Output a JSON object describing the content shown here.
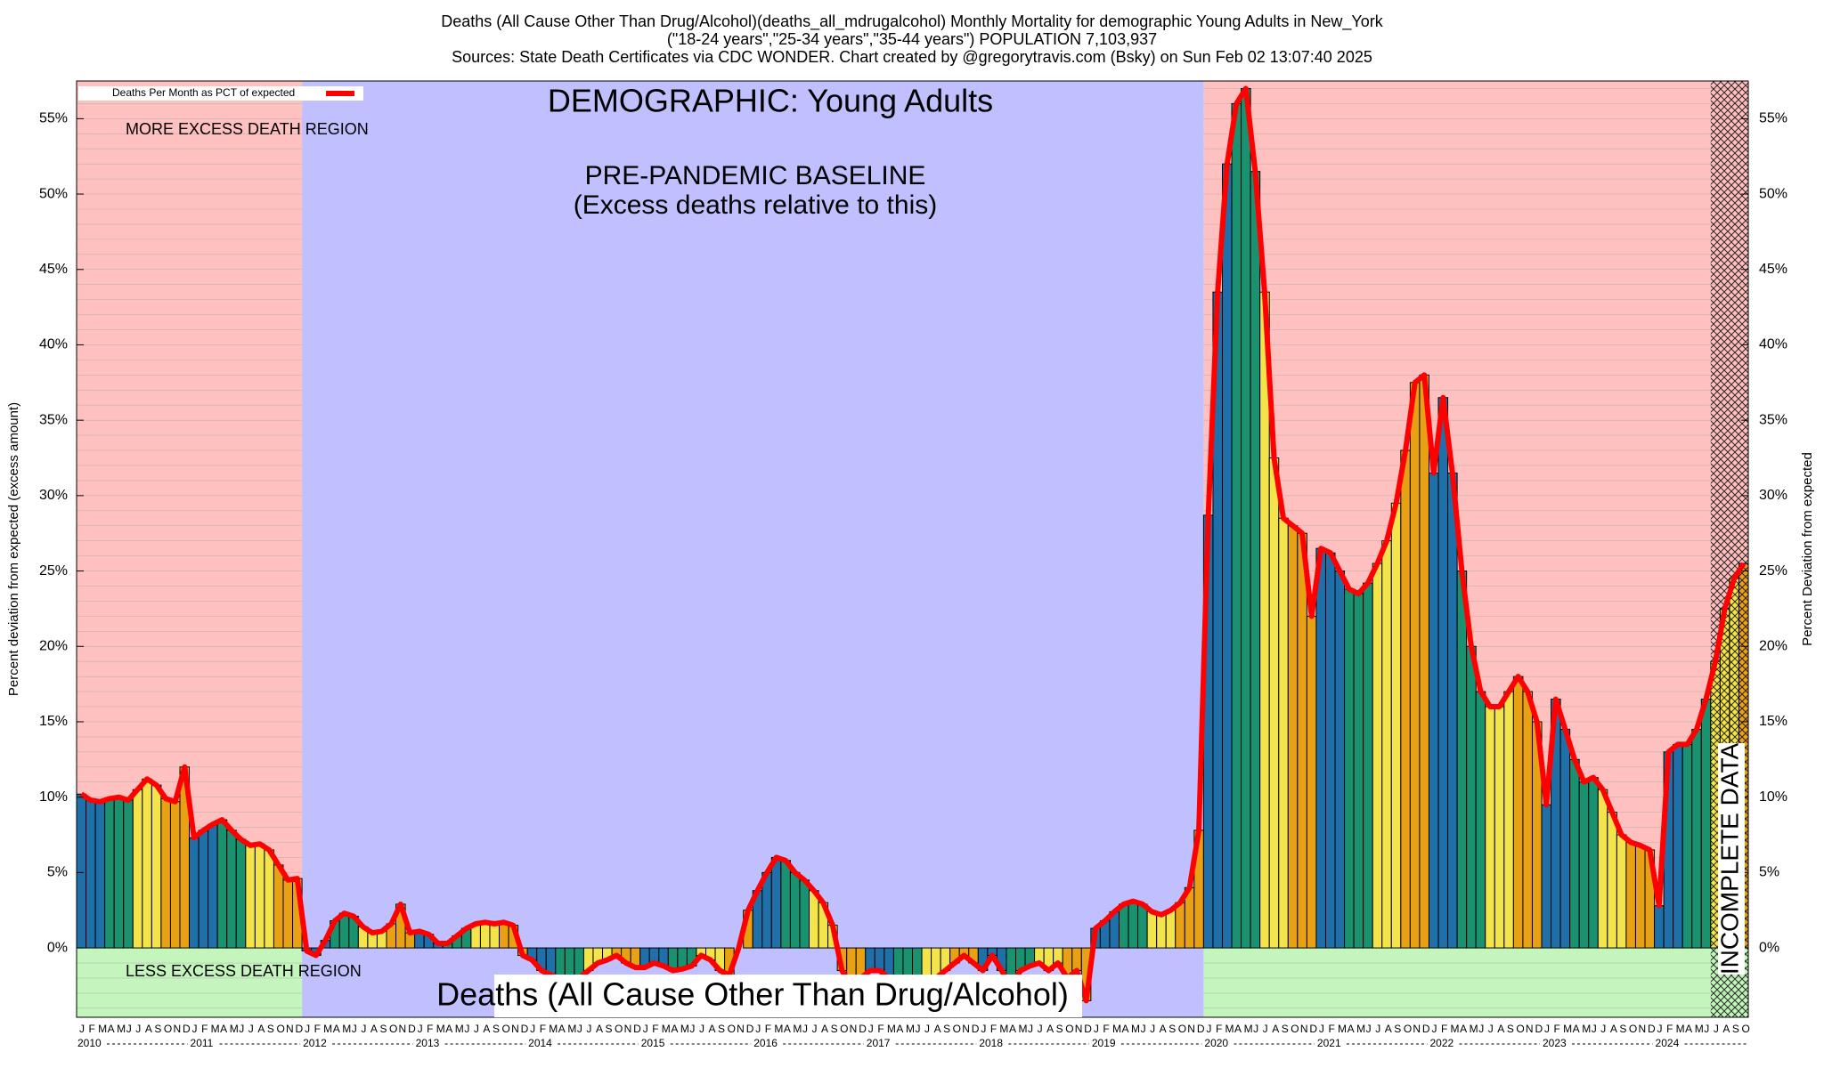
{
  "chart_data": {
    "type": "bar",
    "title": [
      "Deaths (All Cause Other Than Drug/Alcohol)(deaths_all_mdrugalcohol) Monthly Mortality for demographic Young Adults in New_York",
      "(\"18-24 years\",\"25-34 years\",\"35-44 years\") POPULATION 7,103,937",
      "Sources: State Death Certificates via CDC WONDER.                Chart created by @gregorytravis.com (Bsky) on Sun Feb 02 13:07:40 2025"
    ],
    "annotations": {
      "demographic": "DEMOGRAPHIC: Young Adults",
      "baseline": "PRE-PANDEMIC BASELINE",
      "baseline_note": "(Excess deaths relative to this)",
      "more": "MORE EXCESS DEATH REGION",
      "less": "LESS EXCESS DEATH REGION",
      "subject": "Deaths (All Cause Other Than Drug/Alcohol)",
      "incomplete": "INCOMPLETE DATA"
    },
    "y_label": "Percent deviation from expected (excess amount)",
    "y2_label": "Percent Deviation from expected",
    "month_letters": [
      "J",
      "F",
      "M",
      "A",
      "M",
      "J",
      "J",
      "A",
      "S",
      "O",
      "N",
      "D"
    ],
    "years": [
      2010,
      2011,
      2012,
      2013,
      2014,
      2015,
      2016,
      2017,
      2018,
      2019,
      2020,
      2021,
      2022,
      2023,
      2024
    ],
    "baseline_years": [
      2012,
      2019
    ],
    "incomplete_months": 4,
    "quarter_colors": [
      "#1f6fa8",
      "#1a9270",
      "#f2e44a",
      "#e8a015"
    ],
    "region_colors": {
      "more": "#ffc0c0",
      "less": "#c4f5bc",
      "baseline": "#c0c0ff"
    },
    "minor_grid_step": 1,
    "series": [
      {
        "name": "Deaths Per Month as PCT of expected",
        "color": "#ff0000",
        "values": [
          10.2,
          9.8,
          9.7,
          9.9,
          10.0,
          9.8,
          10.5,
          11.2,
          10.8,
          9.9,
          9.7,
          12.0,
          7.3,
          7.8,
          8.2,
          8.5,
          7.8,
          7.2,
          6.8,
          6.9,
          6.5,
          5.5,
          4.5,
          4.6,
          -0.2,
          -0.5,
          0.5,
          1.8,
          2.3,
          2.1,
          1.4,
          1.0,
          1.1,
          1.6,
          2.9,
          1.0,
          1.1,
          0.9,
          0.3,
          0.3,
          0.8,
          1.3,
          1.6,
          1.7,
          1.6,
          1.7,
          1.5,
          -0.5,
          -0.8,
          -1.5,
          -1.8,
          -2.0,
          -2.5,
          -2.0,
          -1.5,
          -1.0,
          -0.8,
          -0.5,
          -1.0,
          -1.3,
          -1.3,
          -1.0,
          -1.2,
          -1.5,
          -1.4,
          -1.2,
          -0.5,
          -0.8,
          -1.5,
          -1.8,
          0.0,
          2.5,
          3.8,
          5.0,
          6.0,
          5.8,
          5.0,
          4.5,
          3.8,
          3.0,
          1.5,
          -1.5,
          -2.5,
          -2.0,
          -1.5,
          -1.5,
          -2.0,
          -3.0,
          -4.0,
          -3.5,
          -2.5,
          -2.0,
          -1.5,
          -1.0,
          -0.5,
          -1.0,
          -1.5,
          -0.5,
          -1.5,
          -2.5,
          -1.5,
          -1.2,
          -1.0,
          -1.5,
          -1.0,
          -2.0,
          -1.5,
          -3.5,
          1.3,
          1.8,
          2.4,
          2.9,
          3.1,
          2.9,
          2.4,
          2.2,
          2.5,
          3.0,
          4.0,
          7.8,
          28.7,
          43.5,
          52.0,
          56.0,
          57.0,
          51.5,
          43.5,
          32.5,
          28.5,
          28.0,
          27.5,
          22.0,
          26.5,
          26.2,
          25.0,
          23.8,
          23.5,
          24.2,
          25.5,
          27.0,
          29.5,
          33.0,
          37.5,
          38.0,
          31.5,
          36.5,
          31.5,
          25.0,
          20.0,
          17.0,
          16.0,
          16.0,
          17.0,
          18.0,
          17.0,
          15.0,
          9.5,
          16.5,
          14.5,
          12.5,
          11.0,
          11.3,
          10.5,
          9.0,
          7.5,
          7.0,
          6.8,
          6.5,
          2.8,
          13.0,
          13.5,
          13.5,
          14.5,
          16.5,
          19.0,
          22.5,
          24.5,
          25.5
        ]
      }
    ],
    "ylim": [
      -4.6,
      57.5
    ],
    "yticks": [
      {
        "value": 0,
        "label": "0%"
      },
      {
        "value": 5,
        "label": "5%"
      },
      {
        "value": 10,
        "label": "10%"
      },
      {
        "value": 15,
        "label": "15%"
      },
      {
        "value": 20,
        "label": "20%"
      },
      {
        "value": 25,
        "label": "25%"
      },
      {
        "value": 30,
        "label": "30%"
      },
      {
        "value": 35,
        "label": "35%"
      },
      {
        "value": 40,
        "label": "40%"
      },
      {
        "value": 45,
        "label": "45%"
      },
      {
        "value": 50,
        "label": "50%"
      },
      {
        "value": 55,
        "label": "55%"
      }
    ]
  }
}
